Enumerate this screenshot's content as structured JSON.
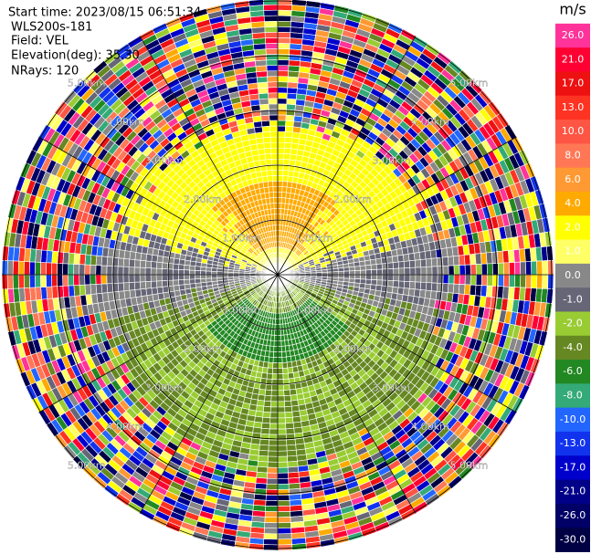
{
  "info": {
    "start_time": "Start time: 2023/08/15 06:51:34",
    "instrument": "WLS200s-181",
    "field": "Field: VEL",
    "elevation": "Elevation(deg): 35.30",
    "nrays": "NRays: 120"
  },
  "colorbar": {
    "unit": "m/s",
    "ticks": [
      {
        "value": 26,
        "label": "26.0"
      },
      {
        "value": 21,
        "label": "21.0"
      },
      {
        "value": 17,
        "label": "17.0"
      },
      {
        "value": 13,
        "label": "13.0"
      },
      {
        "value": 10,
        "label": "10.0"
      },
      {
        "value": 8,
        "label": "8.0"
      },
      {
        "value": 6,
        "label": "6.0"
      },
      {
        "value": 4,
        "label": "4.0"
      },
      {
        "value": 2,
        "label": "2.0"
      },
      {
        "value": 1,
        "label": "1.0"
      },
      {
        "value": 0,
        "label": "0.0"
      },
      {
        "value": -1,
        "label": "-1.0"
      },
      {
        "value": -2,
        "label": "-2.0"
      },
      {
        "value": -4,
        "label": "-4.0"
      },
      {
        "value": -6,
        "label": "-6.0"
      },
      {
        "value": -8,
        "label": "-8.0"
      },
      {
        "value": -10,
        "label": "-10.0"
      },
      {
        "value": -13,
        "label": "-13.0"
      },
      {
        "value": -17,
        "label": "-17.0"
      },
      {
        "value": -21,
        "label": "-21.0"
      },
      {
        "value": -26,
        "label": "-26.0"
      },
      {
        "value": -30,
        "label": "-30.0"
      }
    ],
    "colors": [
      "#ff3399",
      "#ff0033",
      "#ee1111",
      "#ff3322",
      "#ff5544",
      "#ff7755",
      "#ff9933",
      "#ffaa00",
      "#ffff00",
      "#ffff66",
      "#888888",
      "#666677",
      "#99cc33",
      "#668822",
      "#228822",
      "#33aa77",
      "#2266ff",
      "#1133ee",
      "#0000cc",
      "#000088",
      "#000066",
      "#000044"
    ]
  },
  "range_labels": [
    "1.00km",
    "2.00km",
    "3.00km",
    "4.00km",
    "5.00km"
  ]
}
